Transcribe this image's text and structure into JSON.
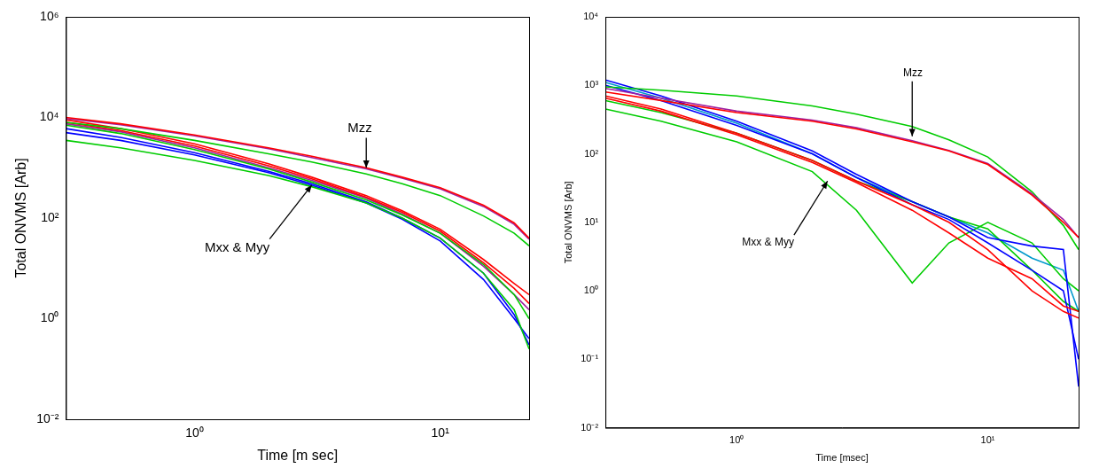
{
  "chart_data": [
    {
      "type": "line",
      "log": true,
      "grid": false,
      "x_label": "Time [m sec]",
      "y_label": "Total ONVMS [Arb]",
      "xlim": [
        0.3,
        23
      ],
      "ylim": [
        0.01,
        1000000
      ],
      "xticks": [
        {
          "value": 1,
          "label": "10⁰"
        },
        {
          "value": 10,
          "label": "10¹"
        }
      ],
      "yticks": [
        {
          "value": 0.01,
          "label": "10⁻²"
        },
        {
          "value": 1,
          "label": "10⁰"
        },
        {
          "value": 100,
          "label": "10²"
        },
        {
          "value": 10000,
          "label": "10⁴"
        },
        {
          "value": 1000000,
          "label": "10⁶"
        }
      ],
      "x": [
        0.3,
        0.5,
        1,
        2,
        3,
        5,
        7,
        10,
        15,
        20,
        23
      ],
      "series": [
        {
          "color": "#ff0000",
          "values": [
            10000,
            7500,
            4500,
            2500,
            1700,
            1000,
            650,
            400,
            180,
            80,
            40
          ]
        },
        {
          "color": "#a020a0",
          "values": [
            9500,
            7200,
            4300,
            2400,
            1600,
            950,
            620,
            380,
            170,
            75,
            38
          ]
        },
        {
          "color": "#00cc00",
          "values": [
            8000,
            6000,
            3500,
            1900,
            1300,
            750,
            480,
            280,
            110,
            50,
            28
          ]
        },
        {
          "color": "#ff0000",
          "values": [
            9000,
            6000,
            3000,
            1200,
            650,
            280,
            140,
            60,
            15,
            5,
            3
          ]
        },
        {
          "color": "#ff0000",
          "values": [
            8000,
            5500,
            2700,
            1100,
            600,
            260,
            130,
            55,
            13,
            4,
            2
          ]
        },
        {
          "color": "#00cc00",
          "values": [
            7000,
            4800,
            2300,
            950,
            520,
            230,
            115,
            50,
            12,
            3,
            1
          ]
        },
        {
          "color": "#00cc00",
          "values": [
            3500,
            2500,
            1400,
            700,
            420,
            200,
            100,
            40,
            8,
            1.5,
            0.25
          ]
        },
        {
          "color": "#0000ff",
          "values": [
            6000,
            4000,
            2000,
            850,
            480,
            210,
            100,
            40,
            8,
            1.2,
            0.3
          ]
        },
        {
          "color": "#0000ff",
          "values": [
            5000,
            3500,
            1800,
            800,
            450,
            200,
            95,
            35,
            6,
            1,
            0.4
          ]
        },
        {
          "color": "#a020a0",
          "values": [
            7500,
            5200,
            2500,
            1000,
            560,
            250,
            120,
            50,
            11,
            3,
            1.5
          ]
        }
      ],
      "annotations": [
        {
          "text": "Mzz",
          "x": 4.2,
          "y": 6000,
          "arrow_x": 5,
          "arrow_y": 1000
        },
        {
          "text": "Mxx & Myy",
          "x": 1.1,
          "y": 25,
          "arrow_x": 3,
          "arrow_y": 450
        }
      ]
    },
    {
      "type": "line",
      "log": true,
      "grid": false,
      "x_label": "Time [msec]",
      "y_label": "Total ONVMS [Arb]",
      "xlim": [
        0.3,
        23
      ],
      "ylim": [
        0.01,
        10000
      ],
      "xticks": [
        {
          "value": 1,
          "label": "10⁰"
        },
        {
          "value": 10,
          "label": "10¹"
        }
      ],
      "yticks": [
        {
          "value": 0.01,
          "label": "10⁻²"
        },
        {
          "value": 0.1,
          "label": "10⁻¹"
        },
        {
          "value": 1,
          "label": "10⁰"
        },
        {
          "value": 10,
          "label": "10¹"
        },
        {
          "value": 100,
          "label": "10²"
        },
        {
          "value": 1000,
          "label": "10³"
        },
        {
          "value": 10000,
          "label": "10⁴"
        }
      ],
      "x": [
        0.3,
        0.5,
        1,
        2,
        3,
        5,
        7,
        10,
        15,
        20,
        23
      ],
      "series": [
        {
          "color": "#ff0000",
          "values": [
            800,
            600,
            400,
            300,
            230,
            150,
            110,
            70,
            25,
            10,
            6
          ]
        },
        {
          "color": "#a020a0",
          "values": [
            900,
            650,
            420,
            310,
            240,
            155,
            112,
            72,
            26,
            11,
            6
          ]
        },
        {
          "color": "#00cc00",
          "values": [
            950,
            850,
            700,
            500,
            380,
            250,
            160,
            90,
            28,
            9,
            4
          ]
        },
        {
          "color": "#ff0000",
          "values": [
            700,
            450,
            200,
            80,
            40,
            18,
            10,
            4,
            1,
            0.5,
            0.4
          ]
        },
        {
          "color": "#ff0000",
          "values": [
            650,
            420,
            190,
            75,
            38,
            15,
            7,
            3,
            1.5,
            0.6,
            0.5
          ]
        },
        {
          "color": "#0000ff",
          "values": [
            1200,
            700,
            300,
            110,
            50,
            20,
            12,
            6,
            4.5,
            4,
            0.04
          ]
        },
        {
          "color": "#0000ff",
          "values": [
            1000,
            600,
            260,
            100,
            45,
            18,
            11,
            5,
            2,
            1,
            0.1
          ]
        },
        {
          "color": "#00cc00",
          "values": [
            450,
            300,
            150,
            55,
            15,
            1.3,
            5,
            10,
            5,
            1.5,
            1
          ]
        },
        {
          "color": "#00cc00",
          "values": [
            600,
            400,
            200,
            80,
            40,
            20,
            12,
            8,
            2,
            0.7,
            0.5
          ]
        },
        {
          "color": "#0099cc",
          "values": [
            1100,
            650,
            280,
            100,
            45,
            20,
            12,
            7,
            3,
            2,
            0.5
          ]
        }
      ],
      "annotations": [
        {
          "text": "Mzz",
          "x": 4.6,
          "y": 1500,
          "arrow_x": 5,
          "arrow_y": 180
        },
        {
          "text": "Mxx & Myy",
          "x": 1.05,
          "y": 5,
          "arrow_x": 2.3,
          "arrow_y": 40
        }
      ]
    }
  ]
}
